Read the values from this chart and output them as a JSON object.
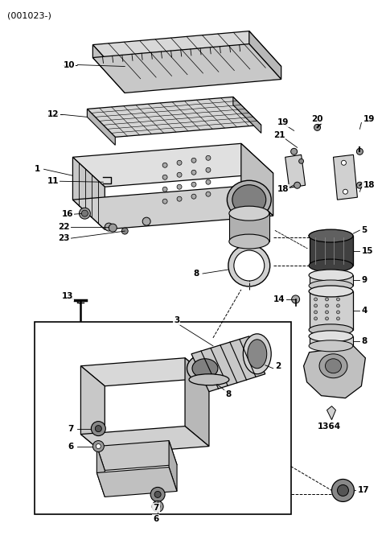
{
  "title": "(001023-)",
  "bg": "#ffffff",
  "figsize": [
    4.8,
    6.76
  ],
  "dpi": 100
}
